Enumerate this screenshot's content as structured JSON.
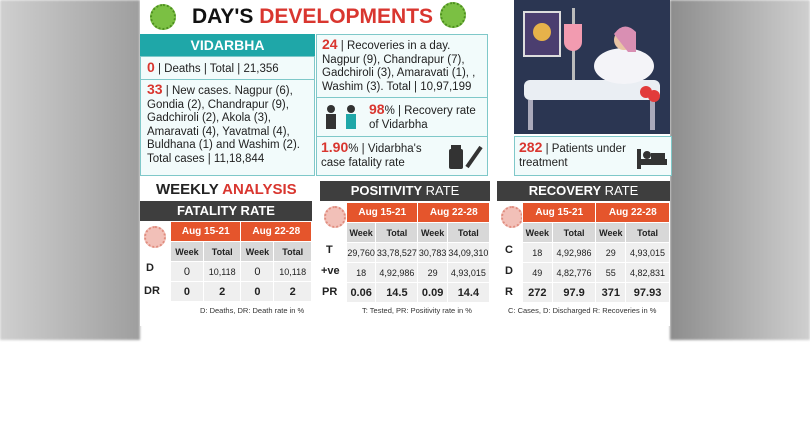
{
  "header": {
    "title_part1": "DAY'S",
    "title_part2": "DEVELOPMENTS"
  },
  "vidarbha": {
    "label": "VIDARBHA",
    "deaths_num": "0",
    "deaths_text": "| Deaths | Total | 21,356",
    "new_cases_num": "33",
    "new_cases_text": "| New cases. Nagpur (6), Gondia (2), Chandrapur (9), Gadchiroli (2), Akola (3), Amaravati (4), Yavatmal (4), Buldhana (1) and Washim (2). Total cases | 11,18,844",
    "recoveries_num": "24",
    "recoveries_text": "| Recoveries in a day. Nagpur (9), Chandrapur (7), Gadchiroli (3), Amaravati (1), , Washim (3). Total | 10,97,199",
    "recovery_rate_num": "98",
    "recovery_rate_text": "% | Recovery rate of Vidarbha",
    "cfr_num": "1.90",
    "cfr_text": "% | Vidarbha's case fatality rate",
    "patients_num": "282",
    "patients_text": "| Patients under treatment"
  },
  "weekly": {
    "part1": "WEEKLY",
    "part2": "ANALYSIS"
  },
  "fatality": {
    "title": "FATALITY RATE",
    "periods": [
      "Aug 15-21",
      "Aug 22-28"
    ],
    "subheads": [
      "Week",
      "Total",
      "Week",
      "Total"
    ],
    "rows": [
      {
        "label": "D",
        "cells": [
          "0",
          "10,118",
          "0",
          "10,118"
        ]
      },
      {
        "label": "DR",
        "cells": [
          "0",
          "2",
          "0",
          "2"
        ]
      }
    ],
    "note": "D: Deaths, DR: Death rate in %"
  },
  "positivity": {
    "title_part1": "POSITIVITY",
    "title_part2": "RATE",
    "periods": [
      "Aug 15-21",
      "Aug 22-28"
    ],
    "subheads": [
      "Week",
      "Total",
      "Week",
      "Total"
    ],
    "rows": [
      {
        "label": "T",
        "cells": [
          "29,760",
          "33,78,527",
          "30,783",
          "34,09,310"
        ]
      },
      {
        "label": "+ve",
        "cells": [
          "18",
          "4,92,986",
          "29",
          "4,93,015"
        ]
      },
      {
        "label": "PR",
        "cells": [
          "0.06",
          "14.5",
          "0.09",
          "14.4"
        ]
      }
    ],
    "note": "T: Tested, PR: Positivity rate in %"
  },
  "recovery": {
    "title_part1": "RECOVERY",
    "title_part2": "RATE",
    "periods": [
      "Aug 15-21",
      "Aug 22-28"
    ],
    "subheads": [
      "Week",
      "Total",
      "Week",
      "Total"
    ],
    "rows": [
      {
        "label": "C",
        "cells": [
          "18",
          "4,92,986",
          "29",
          "4,93,015"
        ]
      },
      {
        "label": "D",
        "cells": [
          "49",
          "4,82,776",
          "55",
          "4,82,831"
        ]
      },
      {
        "label": "R",
        "cells": [
          "272",
          "97.9",
          "371",
          "97.93"
        ]
      }
    ],
    "note": "C: Cases, D: Discharged R: Recoveries in %"
  },
  "colors": {
    "accent_red": "#d9362f",
    "teal": "#1fa7a8",
    "orange": "#e5552c",
    "dark": "#3e3e3e"
  },
  "icons": [
    "virus-icon",
    "doctor-icon",
    "medicine-icon",
    "patient-bed-icon"
  ]
}
